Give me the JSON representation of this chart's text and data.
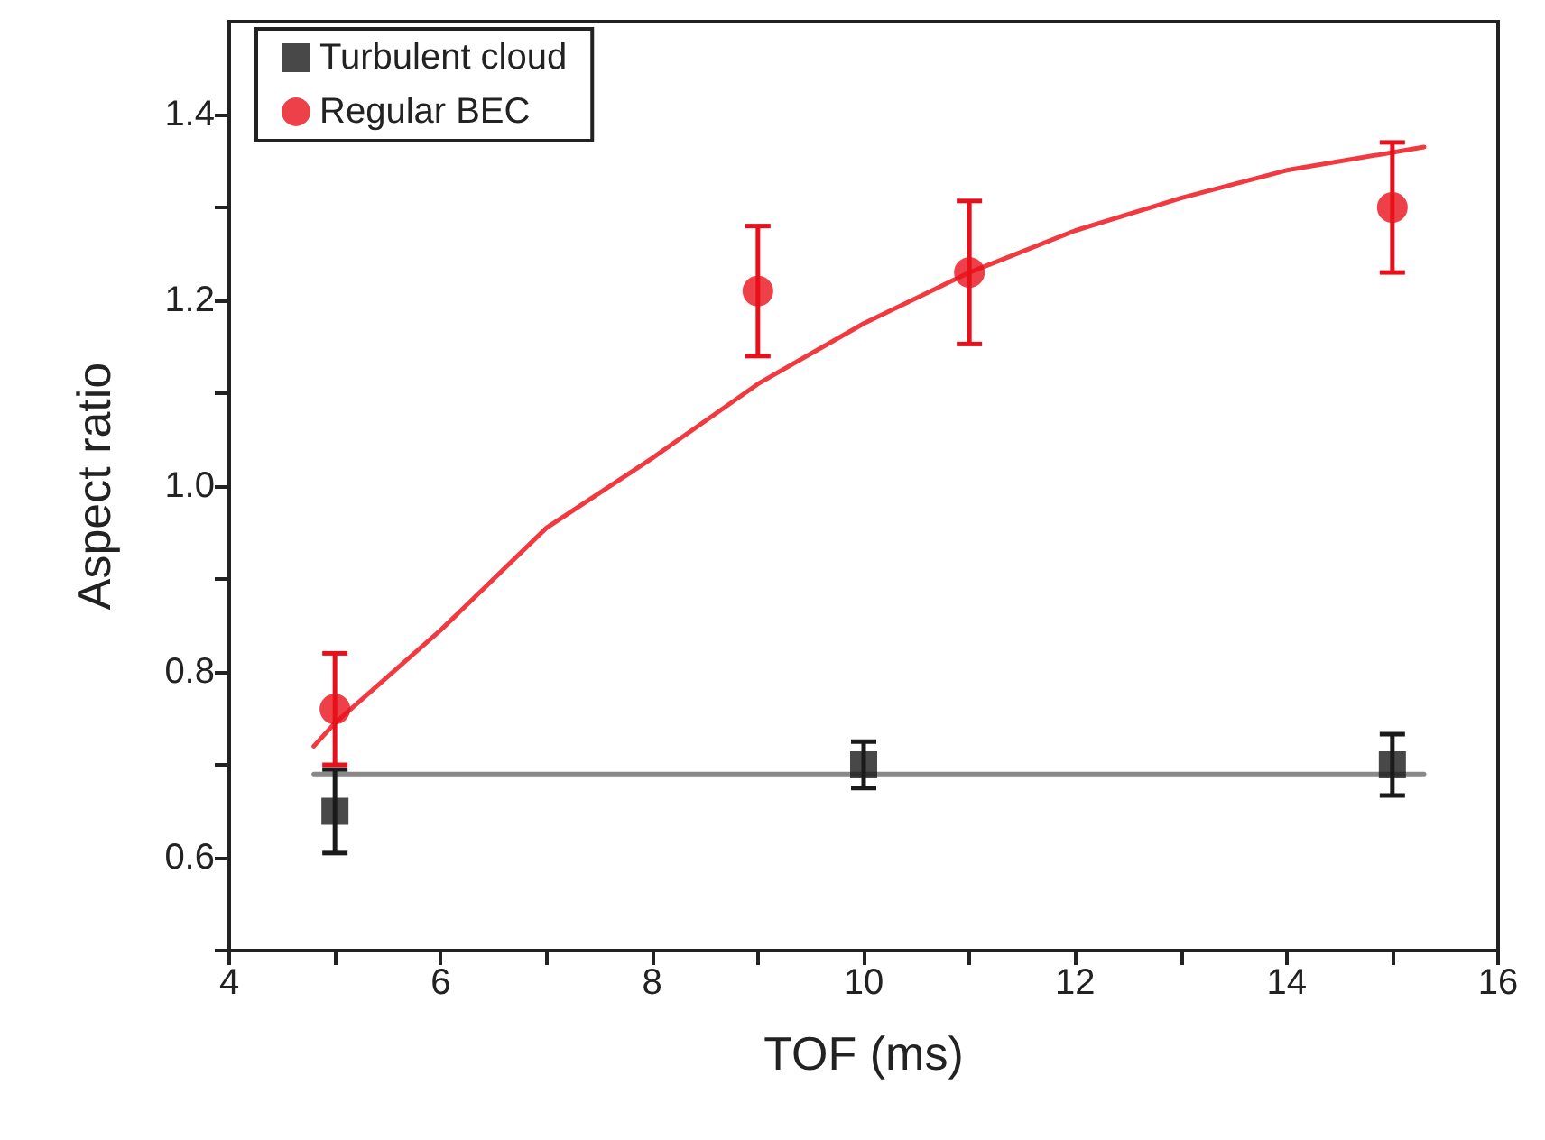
{
  "chart_data": {
    "type": "scatter",
    "xlabel": "TOF (ms)",
    "ylabel": "Aspect ratio",
    "xlim": [
      4,
      16
    ],
    "xticks": [
      4,
      {
        "value": 5,
        "label": null
      },
      6,
      {
        "value": 7,
        "label": null
      },
      8,
      {
        "value": 9,
        "label": null
      },
      10,
      {
        "value": 11,
        "label": null
      },
      12,
      {
        "value": 13,
        "label": null
      },
      14,
      {
        "value": 15,
        "label": null
      },
      16
    ],
    "ylim": [
      0.5,
      1.5
    ],
    "yticks": [
      {
        "value": 0.5,
        "label": null
      },
      0.6,
      {
        "value": 0.7,
        "label": null
      },
      0.8,
      {
        "value": 0.9,
        "label": null
      },
      {
        "value": 1,
        "label": "1.0"
      },
      {
        "value": 1.1,
        "label": null
      },
      1.2,
      {
        "value": 1.3,
        "label": null
      },
      1.4
    ],
    "grid": false,
    "legend": "top left",
    "series": [
      {
        "name": "Turbulent cloud",
        "color": "#1a1a1a",
        "marker": "square",
        "x": [
          5,
          10,
          15
        ],
        "values": [
          0.65,
          0.7,
          0.7
        ],
        "errors": [
          0.045,
          0.025,
          0.033
        ]
      },
      {
        "name": "Regular BEC",
        "color": "#e8101a",
        "marker": "circle",
        "x": [
          5,
          9,
          11,
          15
        ],
        "values": [
          0.76,
          1.21,
          1.23,
          1.3
        ],
        "errors": [
          0.06,
          0.07,
          0.077,
          0.07
        ]
      },
      {
        "type": "line",
        "color": "#888888",
        "marker": "none",
        "line_style": "solid",
        "x": [
          4.8,
          15.3
        ],
        "values": [
          0.69,
          0.69
        ]
      },
      {
        "type": "line",
        "color": "#f03a40",
        "marker": "none",
        "line_style": "solid",
        "x": [
          4.8,
          5,
          6,
          7,
          8,
          9,
          10,
          11,
          12,
          13,
          14,
          15.3
        ],
        "values": [
          0.72,
          0.745,
          0.845,
          0.955,
          1.03,
          1.11,
          1.175,
          1.23,
          1.275,
          1.31,
          1.34,
          1.365
        ]
      }
    ]
  }
}
